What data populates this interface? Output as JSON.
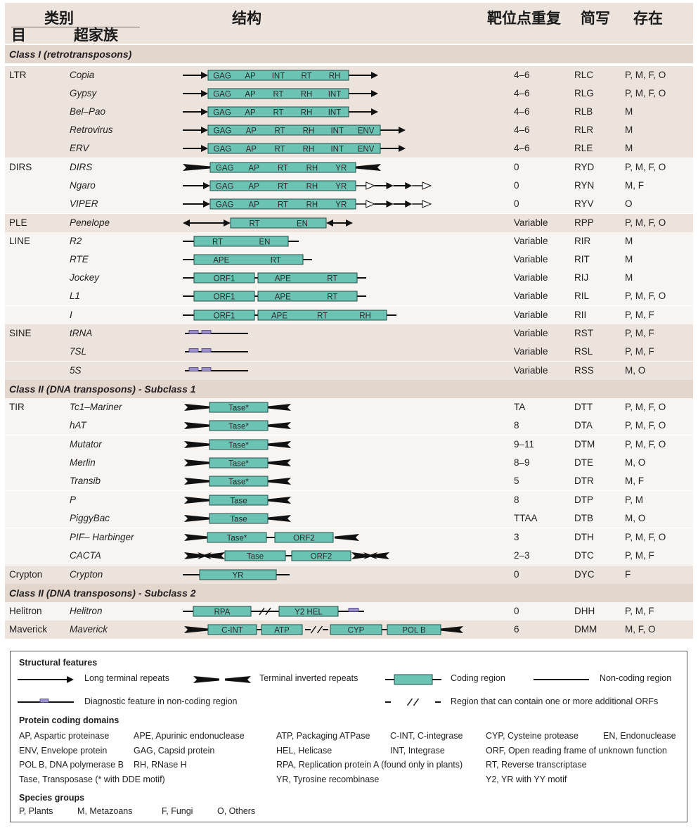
{
  "header": {
    "category": "类别",
    "order": "目",
    "superfamily": "超家族",
    "structure": "结构",
    "tsd": "靶位点重复",
    "code": "简写",
    "presence": "存在"
  },
  "rows": [
    {
      "kind": "section",
      "label": "Class I (retrotransposons)"
    },
    {
      "order": "LTR",
      "sf": "Copia",
      "tsd": "4–6",
      "code": "RLC",
      "pres": "P, M, F, O",
      "g": 0,
      "d": {
        "t": "ltr",
        "ltr": [
          [
            253,
            289
          ],
          [
            489,
            531
          ]
        ],
        "line": null,
        "boxes": [
          [
            289,
            489,
            [
              "GAG",
              "AP",
              "INT",
              "RT",
              "RH"
            ]
          ]
        ],
        "purple": []
      }
    },
    {
      "order": "",
      "sf": "Gypsy",
      "tsd": "4–6",
      "code": "RLG",
      "pres": "P, M, F, O",
      "g": 0,
      "d": {
        "t": "ltr",
        "ltr": [
          [
            253,
            289
          ],
          [
            489,
            531
          ]
        ],
        "boxes": [
          [
            289,
            489,
            [
              "GAG",
              "AP",
              "RT",
              "RH",
              "INT"
            ]
          ]
        ]
      }
    },
    {
      "order": "",
      "sf": "Bel–Pao",
      "tsd": "4–6",
      "code": "RLB",
      "pres": "M",
      "g": 0,
      "d": {
        "t": "ltr",
        "ltr": [
          [
            253,
            289
          ],
          [
            489,
            531
          ]
        ],
        "boxes": [
          [
            289,
            489,
            [
              "GAG",
              "AP",
              "RT",
              "RH",
              "INT"
            ]
          ]
        ]
      }
    },
    {
      "order": "",
      "sf": "Retrovirus",
      "tsd": "4–6",
      "code": "RLR",
      "pres": "M",
      "g": 0,
      "d": {
        "t": "ltr",
        "ltr": [
          [
            253,
            289
          ],
          [
            534,
            570
          ]
        ],
        "boxes": [
          [
            289,
            534,
            [
              "GAG",
              "AP",
              "RT",
              "RH",
              "INT",
              "ENV"
            ]
          ]
        ]
      }
    },
    {
      "order": "",
      "sf": "ERV",
      "tsd": "4–6",
      "code": "RLE",
      "pres": "M",
      "g": 0,
      "d": {
        "t": "ltr",
        "ltr": [
          [
            253,
            289
          ],
          [
            534,
            570
          ]
        ],
        "boxes": [
          [
            289,
            534,
            [
              "GAG",
              "AP",
              "RT",
              "RH",
              "INT",
              "ENV"
            ]
          ]
        ]
      }
    },
    {
      "order": "DIRS",
      "sf": "DIRS",
      "tsd": "0",
      "code": "RYD",
      "pres": "P, M, F, O",
      "g": 1,
      "d": {
        "t": "dirs",
        "tir": [
          [
            253,
            292
          ],
          [
            499,
            535
          ]
        ],
        "boxes": [
          [
            292,
            499,
            [
              "GAG",
              "AP",
              "RT",
              "RH",
              "YR"
            ]
          ]
        ]
      }
    },
    {
      "order": "",
      "sf": "Ngaro",
      "tsd": "0",
      "code": "RYN",
      "pres": "M, F",
      "g": 1,
      "d": {
        "t": "ngaro",
        "ltr": [
          [
            253,
            292
          ]
        ],
        "boxes": [
          [
            292,
            499,
            [
              "GAG",
              "AP",
              "RT",
              "RH",
              "YR"
            ]
          ]
        ],
        "tail": [
          499,
          606
        ]
      }
    },
    {
      "order": "",
      "sf": "VIPER",
      "tsd": "0",
      "code": "RYV",
      "pres": "O",
      "g": 1,
      "d": {
        "t": "ngaro",
        "ltr": [
          [
            253,
            292
          ]
        ],
        "boxes": [
          [
            292,
            499,
            [
              "GAG",
              "AP",
              "RT",
              "RH",
              "YR"
            ]
          ]
        ],
        "tail": [
          499,
          606
        ]
      }
    },
    {
      "order": "PLE",
      "sf": "Penelope",
      "tsd": "Variable",
      "code": "RPP",
      "pres": "P, M, F, O",
      "g": 2,
      "d": {
        "t": "ple",
        "ltr": [
          [
            253,
            321
          ],
          [
            457,
            495
          ]
        ],
        "boxes": [
          [
            321,
            457,
            [
              "RT",
              "EN"
            ]
          ]
        ]
      }
    },
    {
      "order": "LINE",
      "sf": "R2",
      "tsd": "Variable",
      "code": "RIR",
      "pres": "M",
      "g": 3,
      "d": {
        "t": "line",
        "line": [
          253,
          418
        ],
        "boxes": [
          [
            269,
            403,
            [
              "RT",
              "EN"
            ]
          ]
        ]
      }
    },
    {
      "order": "",
      "sf": "RTE",
      "tsd": "Variable",
      "code": "RIT",
      "pres": "M",
      "g": 3,
      "d": {
        "t": "line",
        "line": [
          253,
          437
        ],
        "boxes": [
          [
            269,
            424,
            [
              "APE",
              "RT"
            ]
          ]
        ]
      }
    },
    {
      "order": "",
      "sf": "Jockey",
      "tsd": "Variable",
      "code": "RIJ",
      "pres": "M",
      "g": 3,
      "d": {
        "t": "line",
        "line": [
          253,
          514
        ],
        "boxes": [
          [
            269,
            355,
            [
              "ORF1"
            ]
          ],
          [
            360,
            501,
            [
              "APE",
              "RT"
            ]
          ]
        ]
      }
    },
    {
      "order": "",
      "sf": "L1",
      "tsd": "Variable",
      "code": "RIL",
      "pres": "P, M, F, O",
      "g": 3,
      "d": {
        "t": "line",
        "line": [
          253,
          514
        ],
        "boxes": [
          [
            269,
            355,
            [
              "ORF1"
            ]
          ],
          [
            360,
            501,
            [
              "APE",
              "RT"
            ]
          ]
        ]
      }
    },
    {
      "order": "",
      "sf": "I",
      "tsd": "Variable",
      "code": "RII",
      "pres": "P, M, F",
      "g": 3,
      "d": {
        "t": "line",
        "line": [
          253,
          557
        ],
        "boxes": [
          [
            269,
            355,
            [
              "ORF1"
            ]
          ],
          [
            360,
            543,
            [
              "APE",
              "RT",
              "RH"
            ]
          ]
        ]
      }
    },
    {
      "order": "SINE",
      "sf": "tRNA",
      "tsd": "Variable",
      "code": "RST",
      "pres": "P, M, F",
      "g": 4,
      "d": {
        "t": "sine",
        "line": [
          256,
          346
        ],
        "purple": [
          [
            262,
            275
          ],
          [
            280,
            293
          ]
        ]
      }
    },
    {
      "order": "",
      "sf": "7SL",
      "tsd": "Variable",
      "code": "RSL",
      "pres": "P, M, F",
      "g": 4,
      "d": {
        "t": "sine",
        "line": [
          256,
          346
        ],
        "purple": [
          [
            262,
            275
          ],
          [
            280,
            293
          ]
        ]
      }
    },
    {
      "order": "",
      "sf": "5S",
      "tsd": "Variable",
      "code": "RSS",
      "pres": "M, O",
      "g": 4,
      "d": {
        "t": "sine",
        "line": [
          256,
          346
        ],
        "purple": [
          [
            262,
            275
          ],
          [
            280,
            293
          ]
        ]
      }
    },
    {
      "kind": "section",
      "label": "Class II (DNA transposons) - Subclass 1"
    },
    {
      "order": "TIR",
      "sf": "Tc1–Mariner",
      "tsd": "TA",
      "code": "DTT",
      "pres": "P, M, F, O",
      "g": 5,
      "d": {
        "t": "tir",
        "tir": [
          [
            255,
            291
          ],
          [
            374,
            407
          ]
        ],
        "boxes": [
          [
            291,
            374,
            [
              "Tase*"
            ]
          ]
        ]
      }
    },
    {
      "order": "",
      "sf": "hAT",
      "tsd": "8",
      "code": "DTA",
      "pres": "P, M, F, O",
      "g": 5,
      "d": {
        "t": "tir",
        "tir": [
          [
            255,
            291
          ],
          [
            374,
            407
          ]
        ],
        "boxes": [
          [
            291,
            374,
            [
              "Tase*"
            ]
          ]
        ]
      }
    },
    {
      "order": "",
      "sf": "Mutator",
      "tsd": "9–11",
      "code": "DTM",
      "pres": "P, M, F, O",
      "g": 5,
      "d": {
        "t": "tir",
        "tir": [
          [
            255,
            291
          ],
          [
            374,
            407
          ]
        ],
        "boxes": [
          [
            291,
            374,
            [
              "Tase*"
            ]
          ]
        ]
      }
    },
    {
      "order": "",
      "sf": "Merlin",
      "tsd": "8–9",
      "code": "DTE",
      "pres": "M, O",
      "g": 5,
      "d": {
        "t": "tir",
        "tir": [
          [
            255,
            291
          ],
          [
            374,
            407
          ]
        ],
        "boxes": [
          [
            291,
            374,
            [
              "Tase*"
            ]
          ]
        ]
      }
    },
    {
      "order": "",
      "sf": "Transib",
      "tsd": "5",
      "code": "DTR",
      "pres": "M, F",
      "g": 5,
      "d": {
        "t": "tir",
        "tir": [
          [
            255,
            291
          ],
          [
            374,
            407
          ]
        ],
        "boxes": [
          [
            291,
            374,
            [
              "Tase*"
            ]
          ]
        ]
      }
    },
    {
      "order": "",
      "sf": "P",
      "tsd": "8",
      "code": "DTP",
      "pres": "P, M",
      "g": 5,
      "d": {
        "t": "tir",
        "tir": [
          [
            255,
            291
          ],
          [
            374,
            407
          ]
        ],
        "boxes": [
          [
            291,
            374,
            [
              "Tase"
            ]
          ]
        ]
      }
    },
    {
      "order": "",
      "sf": "PiggyBac",
      "tsd": "TTAA",
      "code": "DTB",
      "pres": "M, O",
      "g": 5,
      "d": {
        "t": "tir",
        "tir": [
          [
            255,
            291
          ],
          [
            374,
            407
          ]
        ],
        "boxes": [
          [
            291,
            374,
            [
              "Tase"
            ]
          ]
        ]
      }
    },
    {
      "order": "",
      "sf": "PIF– Harbinger",
      "tsd": "3",
      "code": "DTH",
      "pres": "P, M, F, O",
      "g": 5,
      "d": {
        "t": "tir",
        "tir": [
          [
            255,
            288
          ],
          [
            469,
            504
          ]
        ],
        "boxes": [
          [
            288,
            372,
            [
              "Tase*"
            ]
          ],
          [
            384,
            467,
            [
              "ORF2"
            ]
          ]
        ]
      }
    },
    {
      "order": "",
      "sf": "CACTA",
      "tsd": "2–3",
      "code": "DTC",
      "pres": "P, M, F",
      "g": 5,
      "d": {
        "t": "cacta",
        "tir": [
          [
            255,
            313
          ],
          [
            493,
            547
          ]
        ],
        "boxes": [
          [
            313,
            399,
            [
              "Tase"
            ]
          ],
          [
            408,
            492,
            [
              "ORF2"
            ]
          ]
        ]
      }
    },
    {
      "order": "Crypton",
      "sf": "Crypton",
      "tsd": "0",
      "code": "DYC",
      "pres": "F",
      "g": 6,
      "d": {
        "t": "line",
        "line": [
          253,
          405
        ],
        "boxes": [
          [
            277,
            386,
            [
              "YR"
            ]
          ]
        ]
      }
    },
    {
      "kind": "section",
      "label": "Class II (DNA transposons) - Subclass 2"
    },
    {
      "order": "Helitron",
      "sf": "Helitron",
      "tsd": "0",
      "code": "DHH",
      "pres": "P, M, F",
      "g": 7,
      "d": {
        "t": "helitron",
        "line": [
          253,
          511
        ],
        "boxes": [
          [
            268,
            350,
            [
              "RPA"
            ]
          ],
          [
            390,
            474,
            [
              "Y2 HEL"
            ]
          ]
        ],
        "purple": [
          [
            489,
            503
          ]
        ],
        "slash": [
          355,
          385
        ]
      }
    },
    {
      "order": "Maverick",
      "sf": "Maverick",
      "tsd": "6",
      "code": "DMM",
      "pres": "M, F, O",
      "g": 8,
      "d": {
        "t": "maverick",
        "tir": [
          [
            255,
            289
          ],
          [
            620,
            652
          ]
        ],
        "boxes": [
          [
            289,
            358,
            [
              "C-INT"
            ]
          ],
          [
            365,
            423,
            [
              "ATP"
            ]
          ],
          [
            463,
            536,
            [
              "CYP"
            ]
          ],
          [
            544,
            620,
            [
              "POL B"
            ]
          ]
        ],
        "slash": [
          427,
          460
        ]
      }
    }
  ],
  "legend": {
    "structural_title": "Structural features",
    "ltr": "Long terminal repeats",
    "tir": "Terminal inverted repeats",
    "coding": "Coding region",
    "noncoding": "Non-coding region",
    "diagnostic": "Diagnostic feature in non-coding region",
    "orfs": "Region that can contain one or more additional ORFs",
    "domains_title": "Protein coding domains",
    "domains": [
      "AP, Aspartic proteinase",
      "APE, Apurinic endonuclease",
      "ATP, Packaging ATPase",
      "C-INT, C-integrase",
      "CYP, Cysteine protease",
      "EN, Endonuclease",
      "ENV, Envelope protein",
      "GAG, Capsid protein",
      "HEL, Helicase",
      "INT, Integrase",
      "ORF, Open reading frame of unknown function",
      "POL B, DNA polymerase B",
      "RH, RNase H",
      "RPA, Replication protein A (found only in plants)",
      "RT, Reverse transcriptase",
      "Tase, Transposase (* with DDE motif)",
      "YR, Tyrosine recombinase",
      "Y2, YR with YY motif"
    ],
    "species_title": "Species groups",
    "species": [
      "P, Plants",
      "M, Metazoans",
      "F, Fungi",
      "O, Others"
    ]
  },
  "colors": {
    "box_fill": "#6cc3b4",
    "box_stroke": "#1f4e48",
    "purple": "#9a8fc9",
    "row_odd": "#ece3dc",
    "row_even": "#f8f4f1",
    "section": "#e3d6cc"
  }
}
